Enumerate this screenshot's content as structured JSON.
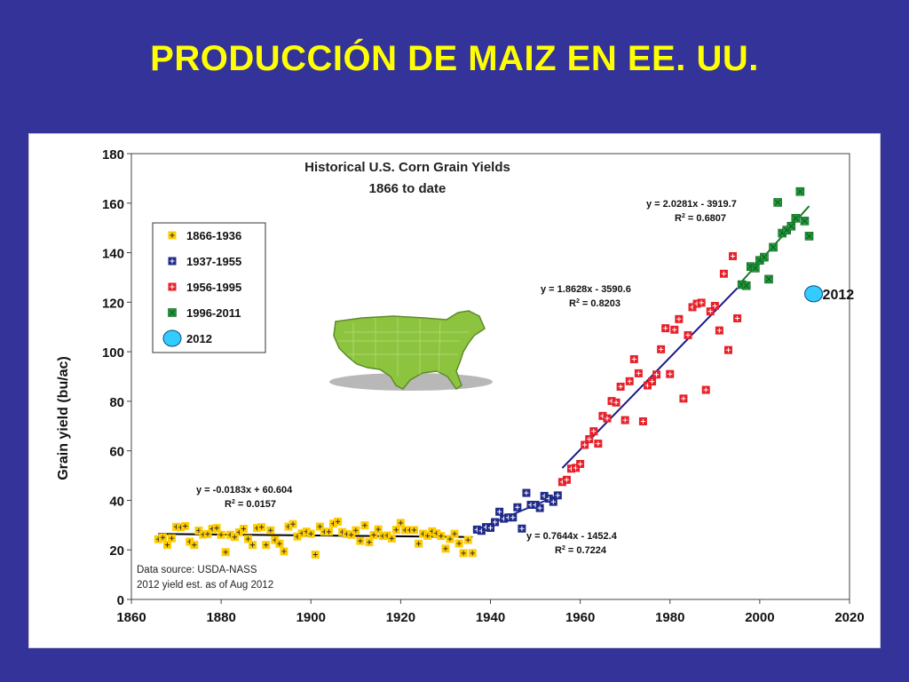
{
  "slide": {
    "title": "PRODUCCIÓN DE MAIZ EN EE. UU."
  },
  "chart_data": {
    "type": "scatter",
    "title": "Historical U.S. Corn Grain Yields",
    "subtitle": "1866 to date",
    "xlabel": "",
    "ylabel": "Grain yield (bu/ac)",
    "xlim": [
      1860,
      2020
    ],
    "ylim": [
      0,
      180
    ],
    "x_ticks": [
      1860,
      1880,
      1900,
      1920,
      1940,
      1960,
      1980,
      2000,
      2020
    ],
    "y_ticks": [
      0,
      20,
      40,
      60,
      80,
      100,
      120,
      140,
      160,
      180
    ],
    "grid": false,
    "legend_position": "upper-left",
    "source_note": [
      "Data source: USDA-NASS",
      "2012 yield est. as of Aug 2012"
    ],
    "inset_image": "us-map-icon",
    "series": [
      {
        "name": "1866-1936",
        "marker": "square-plus",
        "color": "#ffcc00",
        "x": [
          1866,
          1867,
          1868,
          1869,
          1870,
          1871,
          1872,
          1873,
          1874,
          1875,
          1876,
          1877,
          1878,
          1879,
          1880,
          1881,
          1882,
          1883,
          1884,
          1885,
          1886,
          1887,
          1888,
          1889,
          1890,
          1891,
          1892,
          1893,
          1894,
          1895,
          1896,
          1897,
          1898,
          1899,
          1900,
          1901,
          1902,
          1903,
          1904,
          1905,
          1906,
          1907,
          1908,
          1909,
          1910,
          1911,
          1912,
          1913,
          1914,
          1915,
          1916,
          1917,
          1918,
          1919,
          1920,
          1921,
          1922,
          1923,
          1924,
          1925,
          1926,
          1927,
          1928,
          1929,
          1930,
          1931,
          1932,
          1933,
          1934,
          1935,
          1936
        ],
        "y": [
          24.3,
          25.0,
          22.0,
          24.7,
          29.3,
          29.1,
          29.6,
          23.3,
          22.0,
          27.8,
          26.2,
          26.4,
          28.5,
          28.8,
          26.1,
          19.1,
          26.1,
          25.2,
          27.1,
          28.5,
          24.4,
          22.0,
          28.8,
          29.2,
          22.0,
          27.9,
          24.0,
          22.5,
          19.4,
          29.4,
          30.4,
          25.4,
          26.7,
          27.4,
          26.5,
          18.1,
          29.4,
          27.3,
          27.3,
          30.6,
          31.4,
          27.2,
          26.4,
          26.1,
          27.9,
          23.6,
          29.9,
          23.1,
          26.0,
          28.3,
          25.6,
          25.8,
          24.6,
          28.1,
          30.9,
          28.0,
          28.0,
          28.0,
          22.5,
          26.5,
          25.7,
          27.5,
          26.7,
          25.6,
          20.5,
          24.4,
          26.5,
          22.6,
          18.7,
          24.0,
          18.7
        ]
      },
      {
        "name": "1937-1955",
        "marker": "square-plus",
        "color": "#1f2a8a",
        "x": [
          1937,
          1938,
          1939,
          1940,
          1941,
          1942,
          1943,
          1944,
          1945,
          1946,
          1947,
          1948,
          1949,
          1950,
          1951,
          1952,
          1953,
          1954,
          1955
        ],
        "y": [
          28.2,
          27.7,
          29.2,
          28.9,
          31.2,
          35.4,
          32.6,
          33.1,
          33.1,
          37.2,
          28.6,
          43.0,
          38.2,
          38.2,
          36.9,
          41.8,
          40.7,
          39.4,
          42.0
        ]
      },
      {
        "name": "1956-1995",
        "marker": "square-plus",
        "color": "#e8202a",
        "x": [
          1956,
          1957,
          1958,
          1959,
          1960,
          1961,
          1962,
          1963,
          1964,
          1965,
          1966,
          1967,
          1968,
          1969,
          1970,
          1971,
          1972,
          1973,
          1974,
          1975,
          1976,
          1977,
          1978,
          1979,
          1980,
          1981,
          1982,
          1983,
          1984,
          1985,
          1986,
          1987,
          1988,
          1989,
          1990,
          1991,
          1992,
          1993,
          1994,
          1995
        ],
        "y": [
          47.4,
          48.3,
          52.8,
          53.1,
          54.7,
          62.4,
          64.7,
          67.9,
          62.9,
          74.1,
          73.1,
          80.1,
          79.5,
          85.9,
          72.4,
          88.1,
          97.0,
          91.3,
          71.9,
          86.4,
          88.0,
          90.8,
          101.0,
          109.5,
          91.0,
          108.9,
          113.2,
          81.1,
          106.7,
          118.0,
          119.4,
          119.8,
          84.6,
          116.3,
          118.5,
          108.6,
          131.5,
          100.7,
          138.6,
          113.5
        ]
      },
      {
        "name": "1996-2011",
        "marker": "square-x",
        "color": "#1f9a3a",
        "x": [
          1996,
          1997,
          1998,
          1999,
          2000,
          2001,
          2002,
          2003,
          2004,
          2005,
          2006,
          2007,
          2008,
          2009,
          2010,
          2011
        ],
        "y": [
          127.1,
          126.7,
          134.4,
          133.8,
          136.9,
          138.2,
          129.3,
          142.2,
          160.3,
          147.9,
          149.1,
          150.7,
          153.9,
          164.7,
          152.8,
          146.7
        ]
      },
      {
        "name": "2012",
        "marker": "circle",
        "color": "#33ccff",
        "x": [
          2012
        ],
        "y": [
          123.4
        ],
        "label": "2012"
      }
    ],
    "trendlines": [
      {
        "series": "1866-1936",
        "equation": "y = -0.0183x + 60.604",
        "r2_label": "R",
        "r2_value": " = 0.0157",
        "slope": -0.0183,
        "intercept": 60.604,
        "x_range": [
          1866,
          1936
        ],
        "color": "#000000"
      },
      {
        "series": "1937-1955",
        "equation": "y = 0.7644x - 1452.4",
        "r2_label": "R",
        "r2_value": " = 0.7224",
        "slope": 0.7644,
        "intercept": -1452.4,
        "x_range": [
          1937,
          1955
        ],
        "color": "#1f2a8a"
      },
      {
        "series": "1956-1995",
        "equation": "y = 1.8628x - 3590.6",
        "r2_label": "R",
        "r2_value": " = 0.8203",
        "slope": 1.8628,
        "intercept": -3590.6,
        "x_range": [
          1956,
          1995
        ],
        "color": "#1a1a8a"
      },
      {
        "series": "1996-2011",
        "equation": "y = 2.0281x - 3919.7",
        "r2_label": "R",
        "r2_value": " = 0.6807",
        "slope": 2.0281,
        "intercept": -3919.7,
        "x_range": [
          1996,
          2011
        ],
        "color": "#1f7a2a"
      }
    ]
  }
}
